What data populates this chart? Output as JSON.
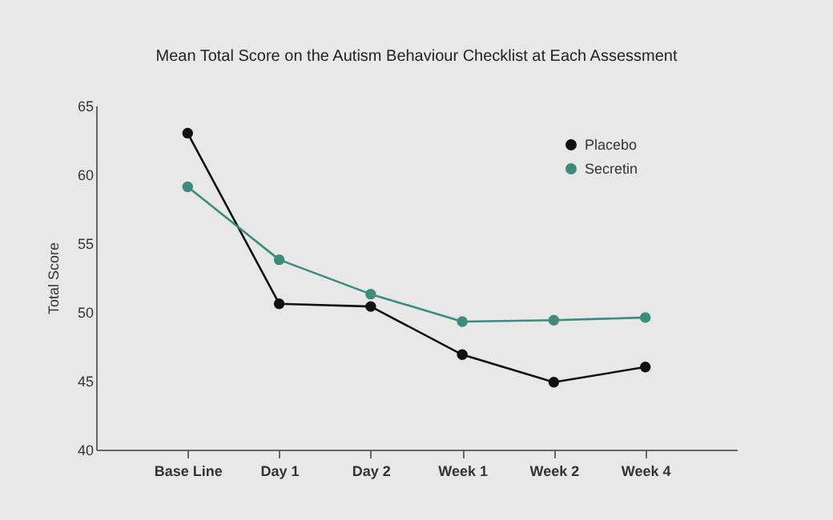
{
  "chart_data": {
    "type": "line",
    "title": "Mean Total Score on the Autism Behaviour Checklist at Each Assessment",
    "ylabel": "Total Score",
    "categories": [
      "Base Line",
      "Day 1",
      "Day 2",
      "Week 1",
      "Week 2",
      "Week 4"
    ],
    "series": [
      {
        "name": "Placebo",
        "color": "#111111",
        "values": [
          63.0,
          50.6,
          50.4,
          46.9,
          44.9,
          46.0
        ]
      },
      {
        "name": "Secretin",
        "color": "#3d8a7e",
        "values": [
          59.1,
          53.8,
          51.3,
          49.3,
          49.4,
          49.6
        ]
      }
    ],
    "ylim": [
      40,
      65
    ],
    "yticks": [
      40,
      45,
      50,
      55,
      60,
      65
    ],
    "grid": false,
    "legend": "top right",
    "marker": "circle",
    "line_style": "solid"
  }
}
